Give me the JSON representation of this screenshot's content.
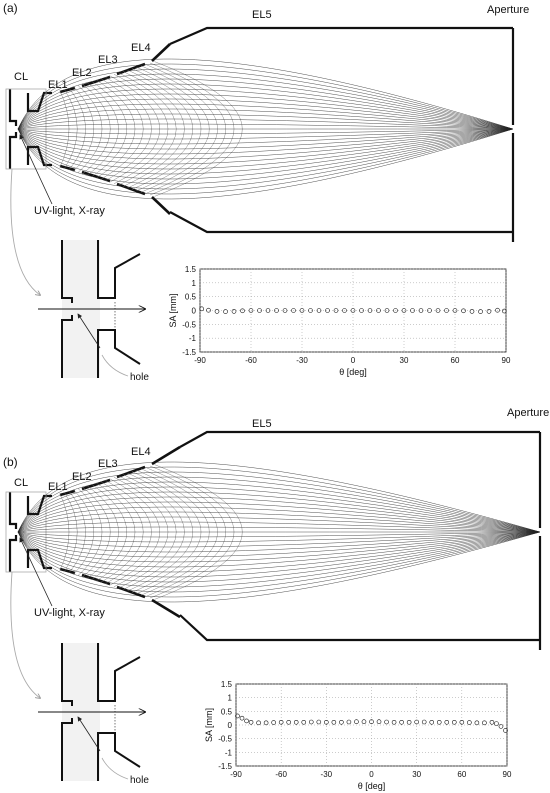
{
  "panels": [
    {
      "id": "a",
      "panel_label": "(a)",
      "labels": {
        "cl": "CL",
        "el1": "EL1",
        "el2": "EL2",
        "el3": "EL3",
        "el4": "EL4",
        "el5": "EL5",
        "aperture": "Aperture",
        "source": "UV-light, X-ray",
        "hole": "hole"
      },
      "chart_data": {
        "type": "scatter",
        "title": "",
        "xlabel": "θ [deg]",
        "ylabel": "SA [mm]",
        "xlim": [
          -90,
          90
        ],
        "ylim": [
          -1.5,
          1.5
        ],
        "xticks": [
          -90,
          -60,
          -30,
          0,
          30,
          60,
          90
        ],
        "yticks": [
          1.5,
          1,
          0.5,
          0,
          -0.5,
          -1,
          -1.5
        ],
        "grid": true,
        "series": [
          {
            "marker": "open-circle",
            "x": [
              -89,
              -85,
              -80,
              -75,
              -70,
              -65,
              -60,
              -55,
              -50,
              -45,
              -40,
              -35,
              -30,
              -25,
              -20,
              -15,
              -10,
              -5,
              0,
              5,
              10,
              15,
              20,
              25,
              30,
              35,
              40,
              45,
              50,
              55,
              60,
              65,
              70,
              75,
              80,
              85,
              89
            ],
            "y": [
              0.06,
              0.01,
              -0.03,
              -0.04,
              -0.03,
              -0.01,
              0.0,
              0.0,
              0.0,
              0.0,
              0.0,
              0.0,
              0.0,
              0.0,
              0.0,
              0.0,
              0.0,
              0.0,
              0.0,
              0.0,
              0.0,
              0.0,
              0.0,
              0.0,
              0.0,
              0.0,
              0.0,
              0.0,
              0.0,
              0.0,
              0.0,
              -0.01,
              -0.03,
              -0.04,
              -0.03,
              0.01,
              -0.02
            ]
          }
        ]
      }
    },
    {
      "id": "b",
      "panel_label": "(b)",
      "labels": {
        "cl": "CL",
        "el1": "EL1",
        "el2": "EL2",
        "el3": "EL3",
        "el4": "EL4",
        "el5": "EL5",
        "aperture": "Aperture",
        "source": "UV-light, X-ray",
        "hole": "hole"
      },
      "chart_data": {
        "type": "scatter",
        "title": "",
        "xlabel": "θ [deg]",
        "ylabel": "SA [mm]",
        "xlim": [
          -90,
          90
        ],
        "ylim": [
          -1.5,
          1.5
        ],
        "xticks": [
          -90,
          -60,
          -30,
          0,
          30,
          60,
          90
        ],
        "yticks": [
          1.5,
          1,
          0.5,
          0,
          -0.5,
          -1,
          -1.5
        ],
        "grid": true,
        "series": [
          {
            "marker": "open-circle",
            "x": [
              -89,
              -86,
              -83,
              -80,
              -75,
              -70,
              -65,
              -60,
              -55,
              -50,
              -45,
              -40,
              -35,
              -30,
              -25,
              -20,
              -15,
              -10,
              -5,
              0,
              5,
              10,
              15,
              20,
              25,
              30,
              35,
              40,
              45,
              50,
              55,
              60,
              65,
              70,
              75,
              80,
              83,
              86,
              89
            ],
            "y": [
              0.33,
              0.25,
              0.15,
              0.1,
              0.08,
              0.08,
              0.09,
              0.1,
              0.1,
              0.1,
              0.1,
              0.11,
              0.11,
              0.1,
              0.1,
              0.1,
              0.11,
              0.12,
              0.12,
              0.12,
              0.12,
              0.11,
              0.1,
              0.1,
              0.1,
              0.11,
              0.11,
              0.1,
              0.1,
              0.1,
              0.1,
              0.1,
              0.09,
              0.08,
              0.08,
              0.1,
              0.05,
              -0.05,
              -0.2
            ]
          }
        ]
      }
    }
  ]
}
